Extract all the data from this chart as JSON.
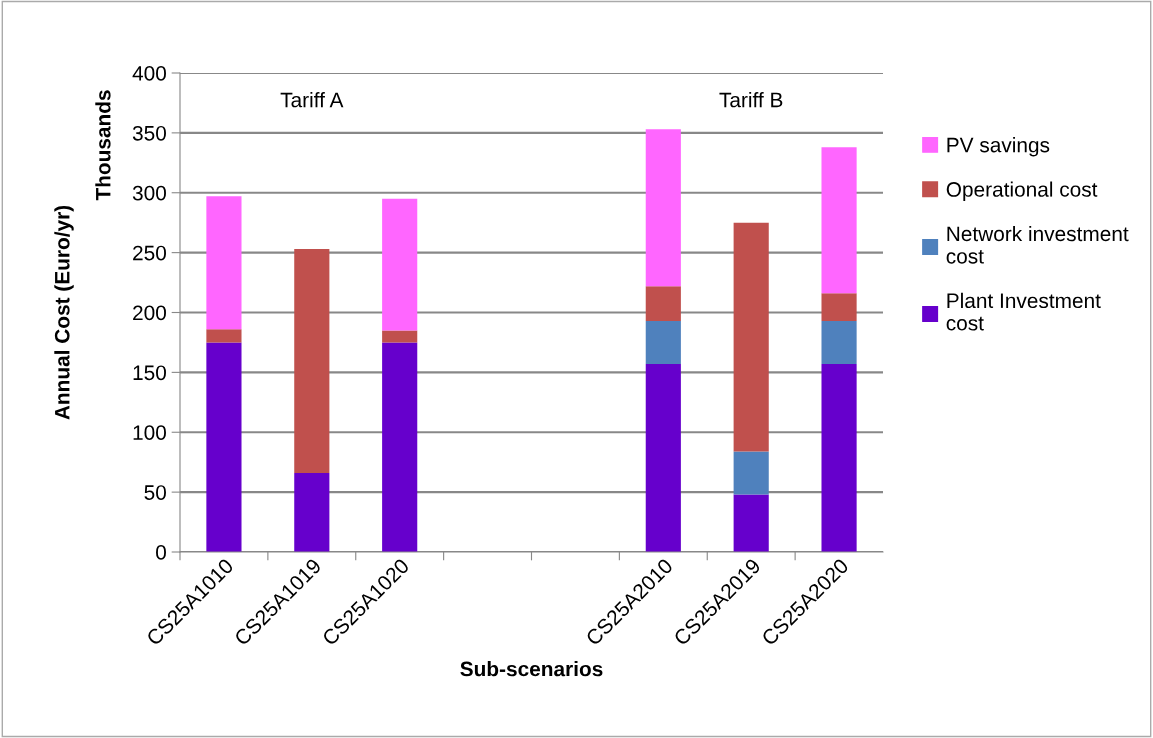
{
  "chart_data": {
    "type": "bar",
    "stacked": true,
    "xlabel": "Sub-scenarios",
    "ylabel": "Annual Cost (Euro/yr)",
    "y2label": "Thousands",
    "categories": [
      "CS25A1010",
      "CS25A1019",
      "CS25A1020",
      null,
      null,
      "CS25A2010",
      "CS25A2019",
      "CS25A2020"
    ],
    "series": [
      {
        "name": "Plant Investment cost",
        "color": "#6600cc",
        "values": [
          175,
          66,
          175,
          null,
          null,
          157,
          48,
          157
        ]
      },
      {
        "name": "Network investment cost",
        "color": "#4f81bd",
        "values": [
          0,
          0,
          0,
          null,
          null,
          36,
          36,
          36
        ]
      },
      {
        "name": "Operational cost",
        "color": "#c0504d",
        "values": [
          11,
          187,
          10,
          null,
          null,
          29,
          191,
          23
        ]
      },
      {
        "name": "PV savings",
        "color": "#ff66ff",
        "values": [
          111,
          0,
          110,
          null,
          null,
          131,
          0,
          122
        ]
      }
    ],
    "ylim": [
      0,
      400
    ],
    "yticks": [
      0,
      50,
      100,
      150,
      200,
      250,
      300,
      350,
      400
    ],
    "grid": "y",
    "legend": "right",
    "annotations": [
      "Tariff A",
      "Tariff B"
    ]
  }
}
